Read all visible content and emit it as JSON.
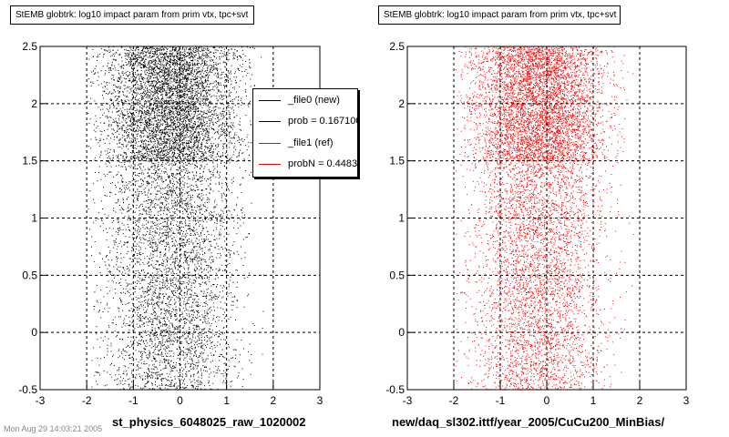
{
  "panels": [
    {
      "title": "StEMB globtrk: log10 impact param from prim vtx, tpc+svt",
      "xlabel": "st_physics_6048025_raw_1020002",
      "color": "#000000"
    },
    {
      "title": "StEMB globtrk: log10 impact param from prim vtx, tpc+svt",
      "xlabel": "new/daq_sl302.ittf/year_2005/CuCu200_MinBias/",
      "color": "#ff0000"
    }
  ],
  "legend": {
    "entries": [
      {
        "label": "_file0 (new)",
        "color": "#000000"
      },
      {
        "label": "prob = 0.167100",
        "color": "#000000"
      },
      {
        "label": "_file1 (ref)",
        "color": "#ff0000"
      },
      {
        "label": "probN = 0.448310",
        "color": "#ff0000"
      }
    ]
  },
  "footer": "Mon Aug 29 14:03:21 2005",
  "chart_data": [
    {
      "type": "scatter",
      "title": "StEMB globtrk: log10 impact param from prim vtx, tpc+svt",
      "xlabel": "st_physics_6048025_raw_1020002",
      "ylabel": "",
      "xlim": [
        -3,
        3
      ],
      "ylim": [
        -0.5,
        2.5
      ],
      "xticks": [
        -3,
        -2,
        -1,
        0,
        1,
        2,
        3
      ],
      "yticks": [
        -0.5,
        0,
        0.5,
        1,
        1.5,
        2,
        2.5
      ],
      "grid": true,
      "marker_color": "#000000",
      "density_profile": {
        "description_points": [
          [
            -2.0,
            -0.5
          ],
          [
            2.0,
            2.5
          ]
        ],
        "x_core": [
          -1.2,
          1.0
        ],
        "dense_band_y": [
          1.5,
          2.5
        ]
      }
    },
    {
      "type": "scatter",
      "title": "StEMB globtrk: log10 impact param from prim vtx, tpc+svt",
      "xlabel": "new/daq_sl302.ittf/year_2005/CuCu200_MinBias/",
      "ylabel": "",
      "xlim": [
        -3,
        3
      ],
      "ylim": [
        -0.5,
        2.5
      ],
      "xticks": [
        -3,
        -2,
        -1,
        0,
        1,
        2,
        3
      ],
      "yticks": [
        -0.5,
        0,
        0.5,
        1,
        1.5,
        2,
        2.5
      ],
      "grid": true,
      "marker_color": "#ff0000",
      "density_profile": {
        "description_points": [
          [
            -2.0,
            -0.5
          ],
          [
            2.0,
            2.5
          ]
        ],
        "x_core": [
          -1.2,
          1.0
        ],
        "dense_band_y": [
          1.5,
          2.5
        ]
      }
    }
  ]
}
